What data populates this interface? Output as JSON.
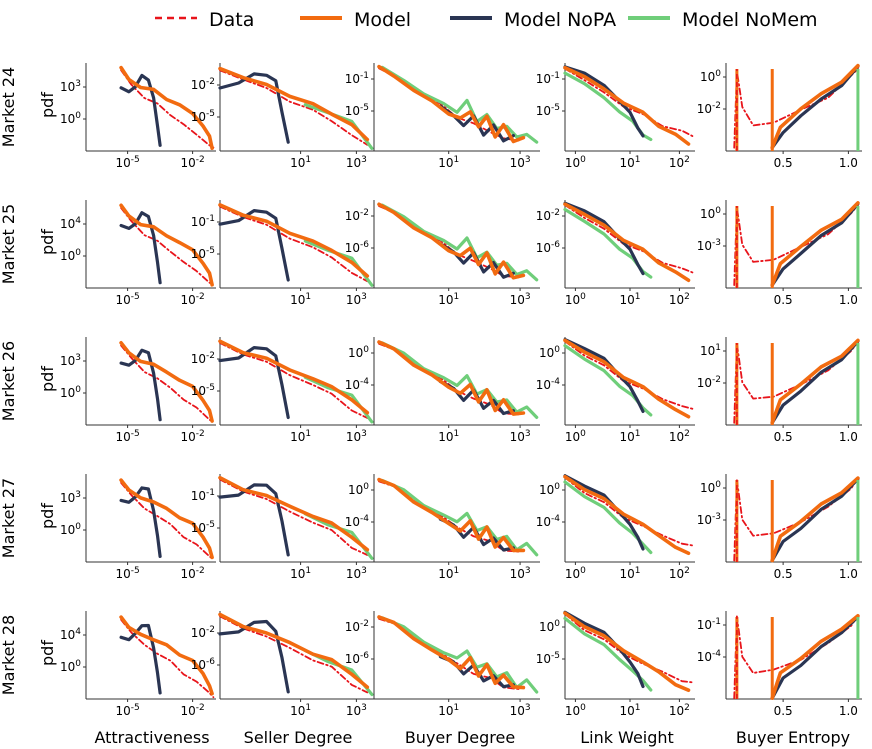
{
  "legend": [
    {
      "label": "Data",
      "color": "#e8141b",
      "style": "dashed"
    },
    {
      "label": "Model",
      "color": "#f26b10",
      "style": "solid"
    },
    {
      "label": "Model NoPA",
      "color": "#2a3553",
      "style": "solid"
    },
    {
      "label": "Model NoMem",
      "color": "#6fce7a",
      "style": "solid"
    }
  ],
  "colors": {
    "data": "#e8141b",
    "model": "#f26b10",
    "nopa": "#2a3553",
    "nomem": "#6fce7a"
  },
  "column_labels": [
    "Attractiveness",
    "Seller Degree",
    "Buyer Degree",
    "Link Weight",
    "Buyer Entropy"
  ],
  "row_labels": [
    "Market 24",
    "Market 25",
    "Market 26",
    "Market 27",
    "Market 28"
  ],
  "ylabel": "pdf",
  "xticks": [
    [
      "10^-5",
      "10^-2"
    ],
    [
      "10^1",
      "10^3"
    ],
    [
      "10^1",
      "10^3"
    ],
    [
      "10^0",
      "10^1",
      "10^2"
    ],
    [
      "0.5",
      "1.0"
    ]
  ],
  "yticks": [
    [
      [
        "10^3",
        "10^0"
      ],
      [
        "10^-2",
        "10^-5"
      ],
      [
        "10^-1",
        "10^-5"
      ],
      [
        "10^-1",
        "10^-5"
      ],
      [
        "10^0",
        "10^-2"
      ]
    ],
    [
      [
        "10^4",
        "10^0"
      ],
      [
        "10^-1",
        "10^-5"
      ],
      [
        "10^-2",
        "10^-6"
      ],
      [
        "10^-2",
        "10^-6"
      ],
      [
        "10^0",
        "10^-3"
      ]
    ],
    [
      [
        "10^3",
        "10^0"
      ],
      [
        "10^-2",
        "10^-5"
      ],
      [
        "10^0",
        "10^-4"
      ],
      [
        "10^0",
        "10^-4"
      ],
      [
        "10^1",
        "10^-2"
      ]
    ],
    [
      [
        "10^3",
        "10^0"
      ],
      [
        "10^-1",
        "10^-5"
      ],
      [
        "10^0",
        "10^-4"
      ],
      [
        "10^0",
        "10^-4"
      ],
      [
        "10^0",
        "10^-3"
      ]
    ],
    [
      [
        "10^4",
        "10^0"
      ],
      [
        "10^-2",
        "10^-6"
      ],
      [
        "10^-2",
        "10^-6"
      ],
      [
        "10^0",
        "10^-5"
      ],
      [
        "10^-1",
        "10^-4"
      ]
    ]
  ],
  "chart_data": {
    "type": "line",
    "layout": "grid 5 rows (markets) x 5 columns (distributions)",
    "note": "Curves approximate shapes read from log-log pdf panels; values in normalized axis units (0 = left/bottom, 1 = right/top).",
    "templates": {
      "attractiveness": {
        "data": [
          [
            0.27,
            0.92
          ],
          [
            0.35,
            0.74
          ],
          [
            0.45,
            0.62
          ],
          [
            0.55,
            0.52
          ],
          [
            0.65,
            0.42
          ],
          [
            0.75,
            0.3
          ],
          [
            0.85,
            0.18
          ],
          [
            0.95,
            0.08
          ],
          [
            0.98,
            0.02
          ]
        ],
        "model": [
          [
            0.27,
            0.95
          ],
          [
            0.33,
            0.8
          ],
          [
            0.42,
            0.74
          ],
          [
            0.52,
            0.68
          ],
          [
            0.62,
            0.6
          ],
          [
            0.72,
            0.52
          ],
          [
            0.82,
            0.42
          ],
          [
            0.9,
            0.3
          ],
          [
            0.95,
            0.15
          ],
          [
            0.97,
            0.05
          ]
        ],
        "nopa": [
          [
            0.27,
            0.72
          ],
          [
            0.33,
            0.66
          ],
          [
            0.38,
            0.75
          ],
          [
            0.43,
            0.84
          ],
          [
            0.48,
            0.82
          ],
          [
            0.52,
            0.6
          ],
          [
            0.55,
            0.28
          ],
          [
            0.57,
            0.08
          ]
        ],
        "nomem": []
      },
      "seller": {
        "data": [
          [
            0.0,
            0.92
          ],
          [
            0.15,
            0.82
          ],
          [
            0.3,
            0.7
          ],
          [
            0.45,
            0.58
          ],
          [
            0.6,
            0.45
          ],
          [
            0.72,
            0.35
          ],
          [
            0.85,
            0.18
          ],
          [
            0.95,
            0.06
          ]
        ],
        "model": [
          [
            0.0,
            0.94
          ],
          [
            0.15,
            0.84
          ],
          [
            0.3,
            0.74
          ],
          [
            0.45,
            0.64
          ],
          [
            0.6,
            0.52
          ],
          [
            0.72,
            0.43
          ],
          [
            0.85,
            0.3
          ],
          [
            0.95,
            0.12
          ]
        ],
        "nopa": [
          [
            0.0,
            0.72
          ],
          [
            0.12,
            0.78
          ],
          [
            0.22,
            0.86
          ],
          [
            0.3,
            0.88
          ],
          [
            0.36,
            0.78
          ],
          [
            0.4,
            0.45
          ],
          [
            0.44,
            0.1
          ]
        ],
        "nomem": [
          [
            0.55,
            0.53
          ],
          [
            0.7,
            0.44
          ],
          [
            0.85,
            0.32
          ],
          [
            0.98,
            0.05
          ]
        ]
      },
      "buyer": {
        "data": [
          [
            0.03,
            0.93
          ],
          [
            0.15,
            0.82
          ],
          [
            0.28,
            0.65
          ],
          [
            0.4,
            0.52
          ],
          [
            0.5,
            0.4
          ],
          [
            0.6,
            0.3
          ],
          [
            0.7,
            0.22
          ],
          [
            0.78,
            0.15
          ],
          [
            0.88,
            0.1
          ]
        ],
        "model": [
          [
            0.03,
            0.95
          ],
          [
            0.12,
            0.85
          ],
          [
            0.24,
            0.7
          ],
          [
            0.35,
            0.55
          ],
          [
            0.45,
            0.44
          ],
          [
            0.52,
            0.36
          ],
          [
            0.58,
            0.45
          ],
          [
            0.63,
            0.28
          ],
          [
            0.68,
            0.38
          ],
          [
            0.73,
            0.18
          ],
          [
            0.78,
            0.28
          ],
          [
            0.84,
            0.12
          ],
          [
            0.9,
            0.15
          ]
        ],
        "nopa": [
          [
            0.4,
            0.5
          ],
          [
            0.48,
            0.4
          ],
          [
            0.54,
            0.3
          ],
          [
            0.6,
            0.38
          ],
          [
            0.66,
            0.2
          ],
          [
            0.72,
            0.28
          ],
          [
            0.78,
            0.12
          ],
          [
            0.84,
            0.18
          ]
        ],
        "nomem": [
          [
            0.05,
            0.94
          ],
          [
            0.18,
            0.8
          ],
          [
            0.3,
            0.66
          ],
          [
            0.42,
            0.52
          ],
          [
            0.5,
            0.46
          ],
          [
            0.56,
            0.56
          ],
          [
            0.62,
            0.34
          ],
          [
            0.68,
            0.42
          ],
          [
            0.74,
            0.24
          ],
          [
            0.8,
            0.3
          ],
          [
            0.86,
            0.14
          ],
          [
            0.92,
            0.2
          ],
          [
            0.98,
            0.1
          ]
        ]
      },
      "link": {
        "data": [
          [
            0.0,
            0.95
          ],
          [
            0.15,
            0.8
          ],
          [
            0.3,
            0.66
          ],
          [
            0.45,
            0.52
          ],
          [
            0.6,
            0.4
          ],
          [
            0.75,
            0.3
          ],
          [
            0.9,
            0.22
          ],
          [
            0.98,
            0.17
          ]
        ],
        "model": [
          [
            0.0,
            0.96
          ],
          [
            0.15,
            0.84
          ],
          [
            0.3,
            0.7
          ],
          [
            0.45,
            0.56
          ],
          [
            0.6,
            0.42
          ],
          [
            0.72,
            0.3
          ],
          [
            0.85,
            0.18
          ],
          [
            0.95,
            0.08
          ]
        ],
        "nopa": [
          [
            0.0,
            0.97
          ],
          [
            0.15,
            0.88
          ],
          [
            0.3,
            0.74
          ],
          [
            0.42,
            0.58
          ],
          [
            0.5,
            0.42
          ],
          [
            0.56,
            0.28
          ],
          [
            0.6,
            0.16
          ]
        ],
        "nomem": [
          [
            0.0,
            0.9
          ],
          [
            0.15,
            0.76
          ],
          [
            0.3,
            0.6
          ],
          [
            0.42,
            0.46
          ],
          [
            0.52,
            0.32
          ],
          [
            0.6,
            0.2
          ],
          [
            0.66,
            0.12
          ]
        ]
      },
      "entropy": {
        "data": [
          [
            0.06,
            0.02
          ],
          [
            0.08,
            0.92
          ],
          [
            0.12,
            0.5
          ],
          [
            0.2,
            0.28
          ],
          [
            0.35,
            0.34
          ],
          [
            0.55,
            0.45
          ],
          [
            0.75,
            0.62
          ],
          [
            0.92,
            0.85
          ],
          [
            0.97,
            0.93
          ]
        ],
        "model": [
          [
            0.34,
            0.02
          ],
          [
            0.4,
            0.28
          ],
          [
            0.55,
            0.48
          ],
          [
            0.7,
            0.64
          ],
          [
            0.85,
            0.8
          ],
          [
            0.97,
            0.95
          ]
        ],
        "nopa": [
          [
            0.34,
            0.02
          ],
          [
            0.42,
            0.22
          ],
          [
            0.55,
            0.4
          ],
          [
            0.7,
            0.58
          ],
          [
            0.85,
            0.76
          ],
          [
            0.97,
            0.94
          ]
        ],
        "nomem": []
      }
    }
  }
}
